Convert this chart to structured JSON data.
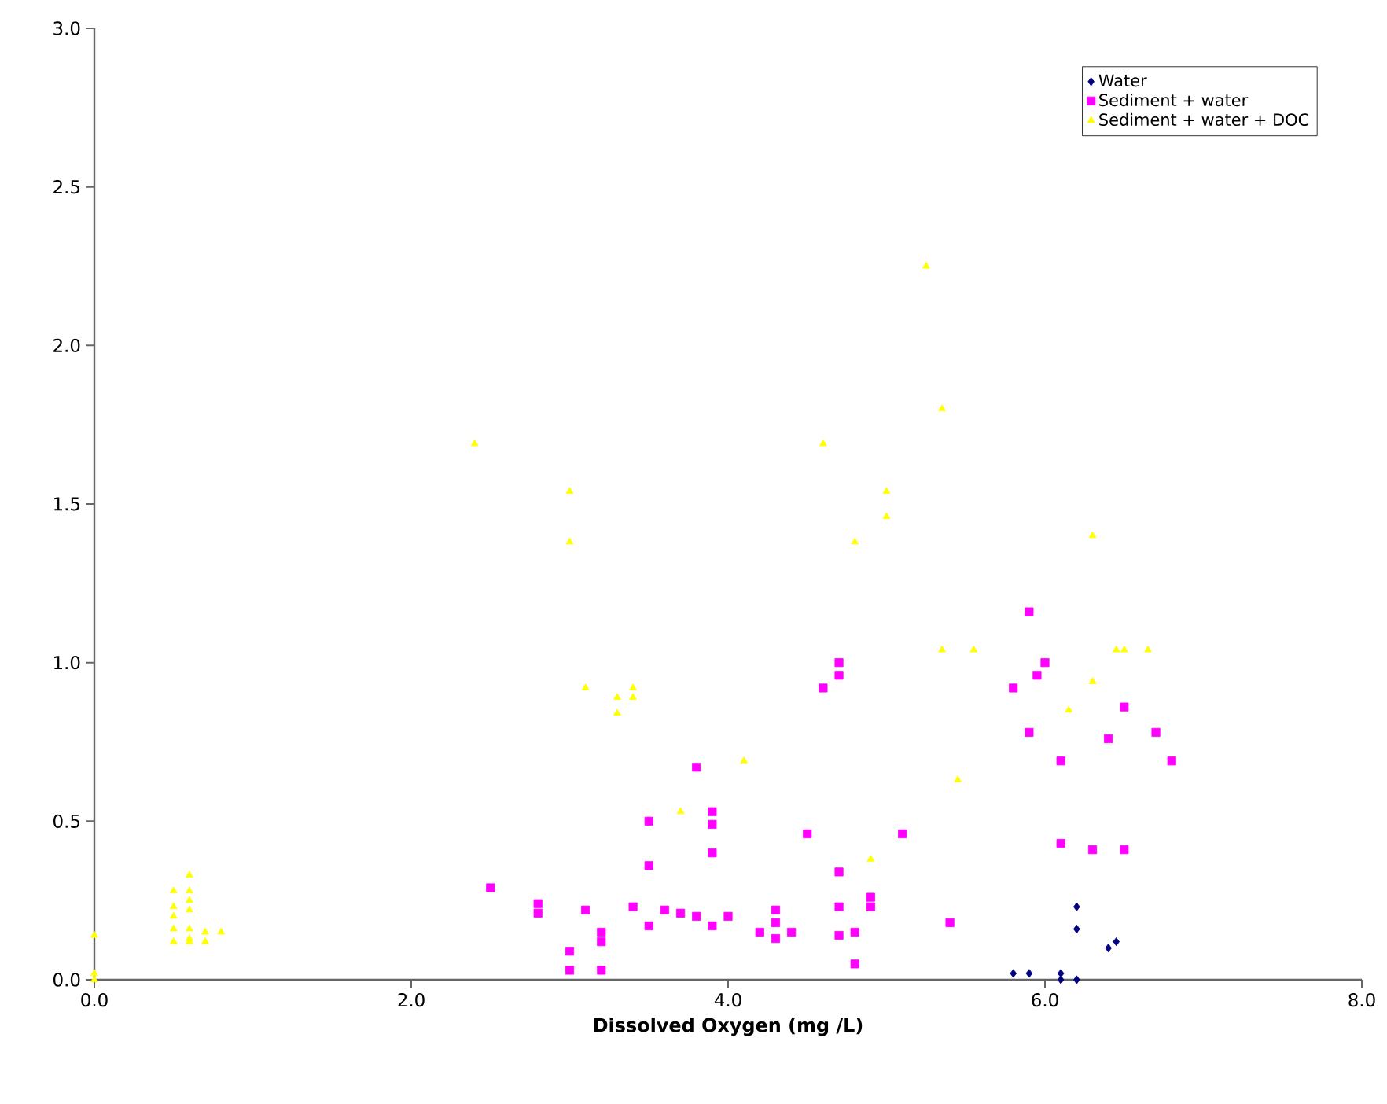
{
  "chart_data": {
    "type": "scatter",
    "xlabel": "Dissolved Oxygen (mg /L)",
    "xlim": [
      0,
      8
    ],
    "ylim": [
      0,
      3
    ],
    "xticks": [
      {
        "value": 0,
        "label": "0.0"
      },
      {
        "value": 2,
        "label": "2.0"
      },
      {
        "value": 4,
        "label": "4.0"
      },
      {
        "value": 6,
        "label": "6.0"
      },
      {
        "value": 8,
        "label": "8.0"
      }
    ],
    "yticks": [
      {
        "value": 0,
        "label": "0.0"
      },
      {
        "value": 0.5,
        "label": "0.5"
      },
      {
        "value": 1,
        "label": "1.0"
      },
      {
        "value": 1.5,
        "label": "1.5"
      },
      {
        "value": 2,
        "label": "2.0"
      },
      {
        "value": 2.5,
        "label": "2.5"
      },
      {
        "value": 3,
        "label": "3.0"
      }
    ],
    "grid": false,
    "legend": "top right",
    "series": [
      {
        "name": "Water",
        "color": "#000080",
        "marker": "diamond",
        "x": [
          5.8,
          5.9,
          6.1,
          6.1,
          6.2,
          6.2,
          6.2,
          6.4,
          6.45
        ],
        "values": [
          0.02,
          0.02,
          0.02,
          0.0,
          0.0,
          0.16,
          0.23,
          0.1,
          0.12
        ]
      },
      {
        "name": "Sediment + water",
        "color": "#ff00ff",
        "marker": "square",
        "x": [
          2.5,
          2.8,
          2.8,
          3.0,
          3.0,
          3.1,
          3.2,
          3.2,
          3.2,
          3.4,
          3.5,
          3.5,
          3.5,
          3.6,
          3.7,
          3.8,
          3.8,
          3.9,
          3.9,
          3.9,
          3.9,
          4.0,
          4.2,
          4.3,
          4.3,
          4.3,
          4.4,
          4.5,
          4.6,
          4.7,
          4.7,
          4.7,
          4.7,
          4.7,
          4.8,
          4.8,
          4.9,
          4.9,
          5.1,
          5.4,
          5.8,
          5.9,
          5.9,
          5.95,
          6.0,
          6.1,
          6.1,
          6.3,
          6.4,
          6.5,
          6.5,
          6.7,
          6.8
        ],
        "values": [
          0.29,
          0.24,
          0.21,
          0.09,
          0.03,
          0.22,
          0.15,
          0.12,
          0.03,
          0.23,
          0.5,
          0.36,
          0.17,
          0.22,
          0.21,
          0.67,
          0.2,
          0.53,
          0.49,
          0.4,
          0.17,
          0.2,
          0.15,
          0.22,
          0.18,
          0.13,
          0.15,
          0.46,
          0.92,
          1.0,
          0.96,
          0.34,
          0.23,
          0.14,
          0.15,
          0.05,
          0.26,
          0.23,
          0.46,
          0.18,
          0.92,
          1.16,
          0.78,
          0.96,
          1.0,
          0.69,
          0.43,
          0.41,
          0.76,
          0.86,
          0.41,
          0.78,
          0.69
        ]
      },
      {
        "name": "Sediment + water + DOC",
        "color": "#ffff00",
        "marker": "triangle",
        "x": [
          0,
          0,
          0,
          0.5,
          0.5,
          0.5,
          0.5,
          0.5,
          0.6,
          0.6,
          0.6,
          0.6,
          0.6,
          0.6,
          0.6,
          0.7,
          0.7,
          0.8,
          2.4,
          3.0,
          3.0,
          3.1,
          3.3,
          3.3,
          3.4,
          3.4,
          3.7,
          4.1,
          4.6,
          4.8,
          4.9,
          5.0,
          5.0,
          5.25,
          5.35,
          5.35,
          5.45,
          5.55,
          6.15,
          6.3,
          6.3,
          6.45,
          6.5,
          6.65
        ],
        "values": [
          0.14,
          0.02,
          0.0,
          0.28,
          0.23,
          0.2,
          0.16,
          0.12,
          0.33,
          0.28,
          0.25,
          0.22,
          0.16,
          0.13,
          0.12,
          0.15,
          0.12,
          0.15,
          1.69,
          1.54,
          1.38,
          0.92,
          0.89,
          0.84,
          0.92,
          0.89,
          0.53,
          0.69,
          1.69,
          1.38,
          0.38,
          1.54,
          1.46,
          2.25,
          1.8,
          1.04,
          0.63,
          1.04,
          0.85,
          1.4,
          0.94,
          1.04,
          1.04,
          1.04
        ]
      }
    ]
  }
}
